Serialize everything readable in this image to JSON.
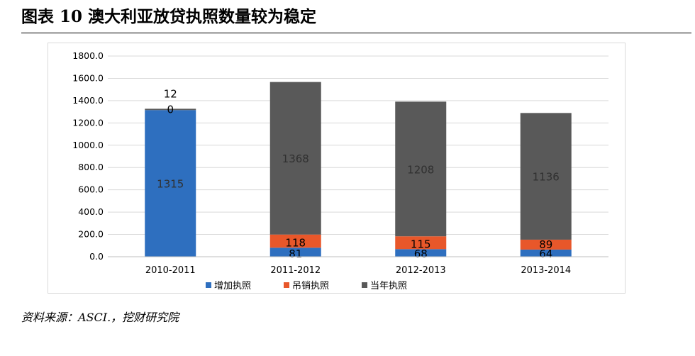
{
  "figure": {
    "title": "图表 10  澳大利亚放贷执照数量较为稳定",
    "source": "资料来源：ASCI.，挖财研究院"
  },
  "chart_data": {
    "type": "bar",
    "stacked": true,
    "categories": [
      "2010-2011",
      "2011-2012",
      "2012-2013",
      "2013-2014"
    ],
    "series": [
      {
        "name": "增加执照",
        "color": "#2e6fbf",
        "values": [
          1315,
          81,
          68,
          64
        ]
      },
      {
        "name": "吊销执照",
        "color": "#e8572a",
        "values": [
          0,
          118,
          115,
          89
        ]
      },
      {
        "name": "当年执照",
        "color": "#595959",
        "values": [
          12,
          1368,
          1208,
          1136
        ]
      }
    ],
    "yticks": [
      "0.0",
      "200.0",
      "400.0",
      "600.0",
      "800.0",
      "1000.0",
      "1200.0",
      "1400.0",
      "1600.0",
      "1800.0"
    ],
    "ylim": [
      0,
      1800
    ],
    "grid": true,
    "legend": "bottom"
  }
}
